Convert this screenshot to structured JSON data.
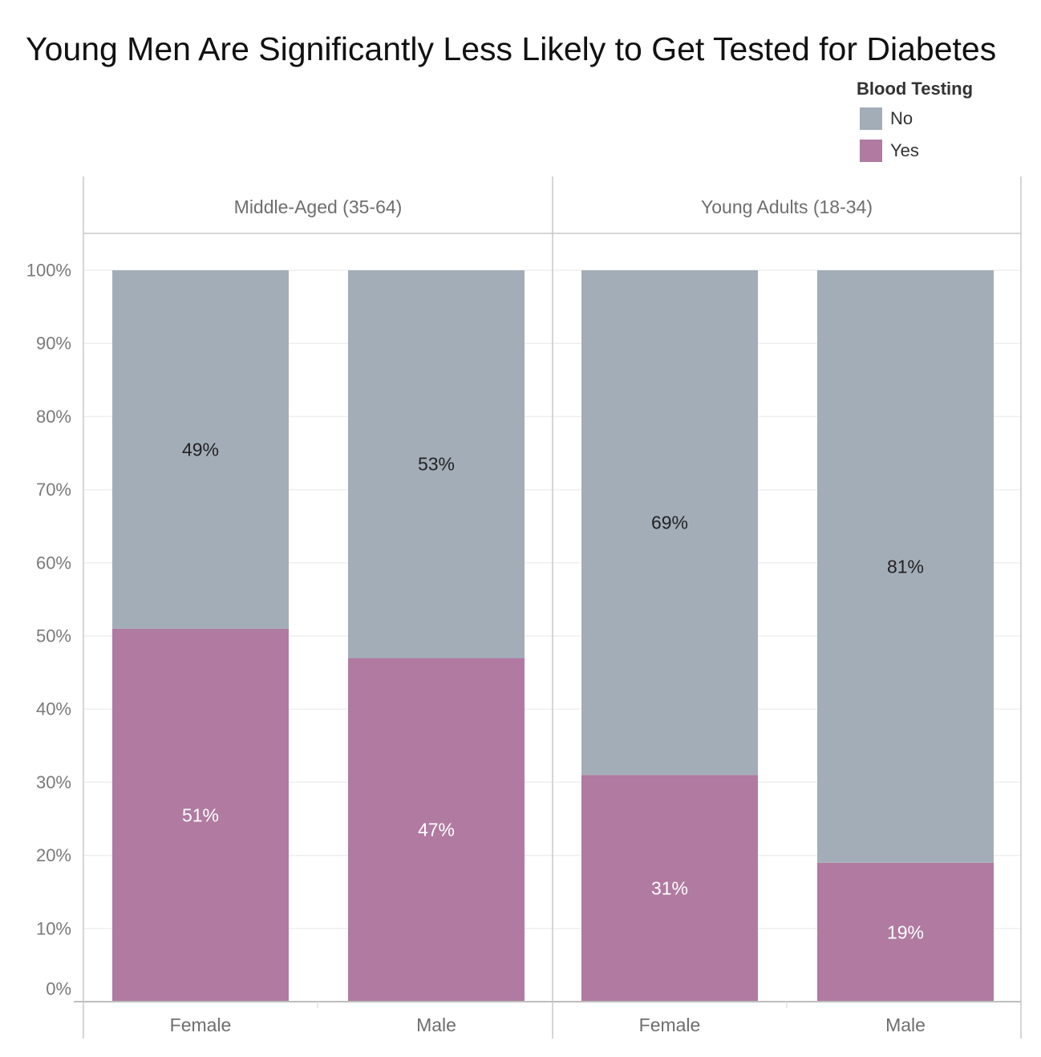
{
  "chart_data": {
    "type": "bar",
    "stacked": true,
    "title": "Young Men Are Significantly Less Likely to Get Tested for Diabetes",
    "legend": {
      "title": "Blood Testing",
      "placement": "top-right",
      "entries": [
        {
          "name": "No",
          "color": "#a3adb8"
        },
        {
          "name": "Yes",
          "color": "#b07aa1"
        }
      ]
    },
    "panels": [
      "Middle-Aged (35-64)",
      "Young Adults (18-34)"
    ],
    "categories": [
      "Female",
      "Male"
    ],
    "series": [
      {
        "name": "Yes",
        "color": "#b07aa1",
        "values": [
          [
            51,
            47
          ],
          [
            31,
            19
          ]
        ],
        "labels": [
          [
            "51%",
            "47%"
          ],
          [
            "31%",
            "19%"
          ]
        ]
      },
      {
        "name": "No",
        "color": "#a3adb8",
        "values": [
          [
            49,
            53
          ],
          [
            69,
            81
          ]
        ],
        "labels": [
          [
            "49%",
            "53%"
          ],
          [
            "69%",
            "81%"
          ]
        ]
      }
    ],
    "ylim": [
      0,
      100
    ],
    "yticks": [
      "0%",
      "10%",
      "20%",
      "30%",
      "40%",
      "50%",
      "60%",
      "70%",
      "80%",
      "90%",
      "100%"
    ],
    "grid": true
  }
}
